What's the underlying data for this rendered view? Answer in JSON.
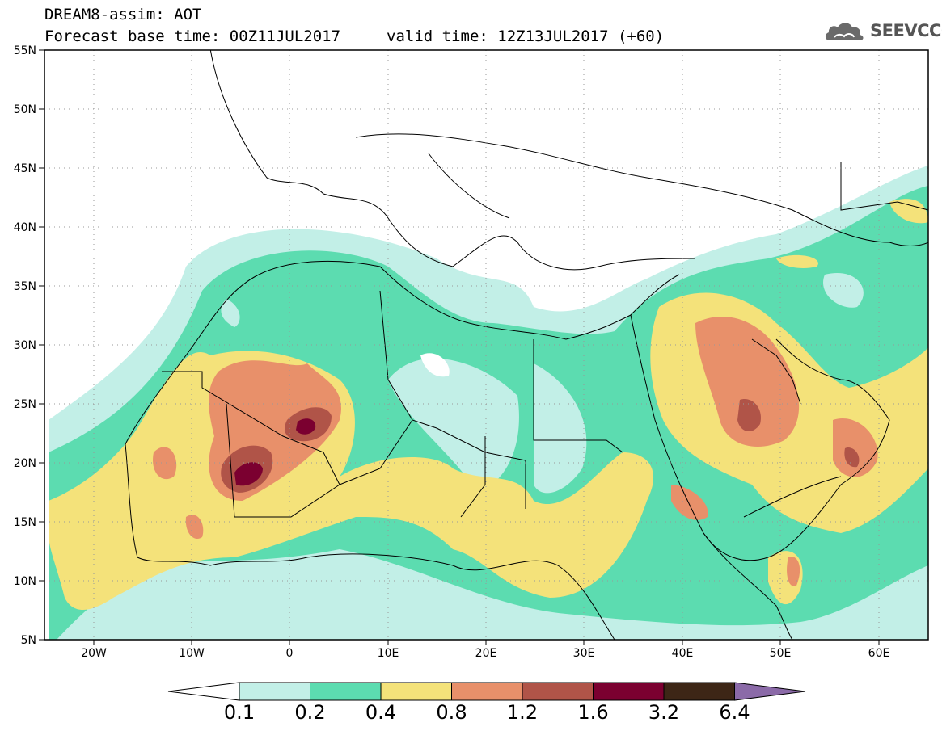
{
  "header": {
    "title": "DREAM8-assim: AOT",
    "base_time": "Forecast base time: 00Z11JUL2017",
    "valid_time": "valid time: 12Z13JUL2017 (+60)",
    "logo_text": "SEEVCCC"
  },
  "map": {
    "lon_range": [
      -25,
      65
    ],
    "lat_range": [
      5,
      55
    ],
    "lat_ticks": [
      "55N",
      "50N",
      "45N",
      "40N",
      "35N",
      "30N",
      "25N",
      "20N",
      "15N",
      "10N",
      "5N"
    ],
    "lon_ticks": [
      "20W",
      "10W",
      "0",
      "10E",
      "20E",
      "30E",
      "40E",
      "50E",
      "60E"
    ],
    "field": "AOT",
    "grid": "dotted"
  },
  "colorbar": {
    "levels": [
      "0.1",
      "0.2",
      "0.4",
      "0.8",
      "1.2",
      "1.6",
      "3.2",
      "6.4"
    ],
    "colors": [
      "#ffffff",
      "#c2efe7",
      "#5cdcb0",
      "#f4e27a",
      "#e8906a",
      "#b05448",
      "#7b0030",
      "#3d2616",
      "#8b6aa8"
    ]
  }
}
